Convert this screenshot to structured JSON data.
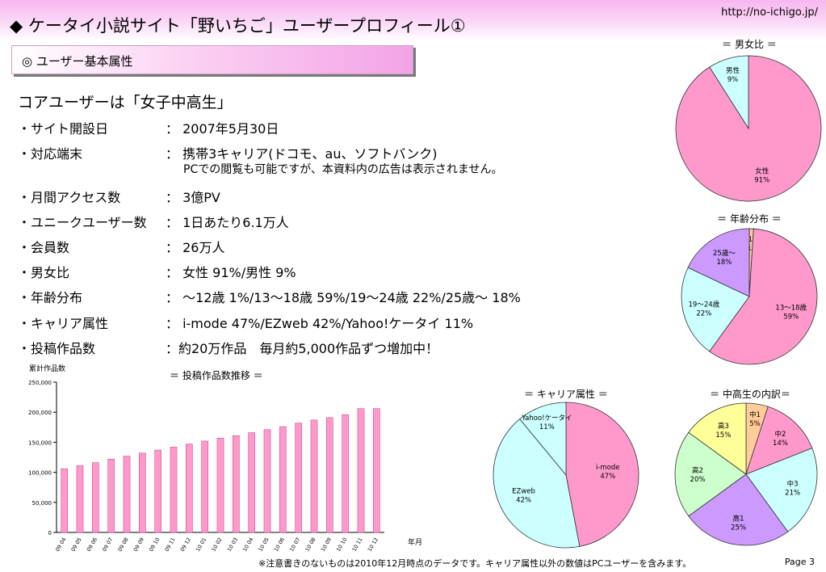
{
  "header": {
    "title": "◆ ケータイ小説サイト「野いちご」ユーザープロフィール①",
    "url": "http://no-ichigo.jp/"
  },
  "section": {
    "label": "◎ ユーザー基本属性"
  },
  "headline": "コアユーザーは「女子中高生」",
  "attributes": [
    {
      "label": "・サイト開設日",
      "value": "： 2007年5月30日"
    },
    {
      "label": "・対応端末",
      "value": "： 携帯3キャリア(ドコモ、au、ソフトバンク)",
      "note": "PCでの閲覧も可能ですが、本資料内の広告は表示されません。"
    },
    {
      "label": "・月間アクセス数",
      "value": "： 3億PV"
    },
    {
      "label": "・ユニークユーザー数",
      "value": "： 1日あたり6.1万人"
    },
    {
      "label": "・会員数",
      "value": "： 26万人"
    },
    {
      "label": "・男女比",
      "value": "： 女性 91%/男性 9%"
    },
    {
      "label": "・年齢分布",
      "value": "： ～12歳 1%/13～18歳 59%/19～24歳 22%/25歳～ 18%"
    },
    {
      "label": "・キャリア属性",
      "value": "： i-mode 47%/EZweb 42%/Yahoo!ケータイ 11%"
    },
    {
      "label": "・投稿作品数",
      "value": "：約20万作品　毎月約5,000作品ずつ増加中！"
    }
  ],
  "footnote": "※注意書きのないものは2010年12月時点のデータです。キャリア属性以外の数値はPCユーザーを含みます。",
  "page": "Page 3",
  "colors": {
    "pink": "#ff99cc",
    "cyan": "#ccffff",
    "lavender": "#cc99ff",
    "yellow": "#ffff99",
    "peach": "#ffcc99",
    "green": "#ccffcc"
  },
  "chart_data": [
    {
      "type": "bar",
      "title": "＝ 投稿作品数推移 ＝",
      "ylabel": "累計作品数",
      "xlabel": "年月",
      "ylim": [
        0,
        250000
      ],
      "yticks": [
        "0",
        "50,000",
        "100,000",
        "150,000",
        "200,000",
        "250,000"
      ],
      "categories": [
        "09 04",
        "09 05",
        "09 06",
        "09 07",
        "09 08",
        "09 09",
        "09 10",
        "09 11",
        "09 12",
        "10 01",
        "10 02",
        "10 03",
        "10 04",
        "10 05",
        "10 06",
        "10 07",
        "10 08",
        "10 09",
        "10 10",
        "10 11",
        "10 12"
      ],
      "values": [
        106000,
        111000,
        116000,
        122000,
        127000,
        132000,
        137000,
        142000,
        147000,
        152000,
        157000,
        161000,
        166000,
        171000,
        176000,
        182000,
        187000,
        191000,
        196000,
        206000,
        206000
      ]
    },
    {
      "type": "pie",
      "title": "＝ 男女比 ＝",
      "slices": [
        {
          "label": "女性",
          "value": 91,
          "text": "91%",
          "color": "#ff99cc"
        },
        {
          "label": "男性",
          "value": 9,
          "text": "9%",
          "color": "#ccffff"
        }
      ]
    },
    {
      "type": "pie",
      "title": "＝ 年齢分布 ＝",
      "slices": [
        {
          "label": "～12歳",
          "value": 1,
          "text": "1%",
          "color": "#ffcc99"
        },
        {
          "label": "13～18歳",
          "value": 59,
          "text": "59%",
          "color": "#ff99cc"
        },
        {
          "label": "19～24歳",
          "value": 22,
          "text": "22%",
          "color": "#ccffff"
        },
        {
          "label": "25歳～",
          "value": 18,
          "text": "18%",
          "color": "#cc99ff"
        }
      ]
    },
    {
      "type": "pie",
      "title": "＝ キャリア属性 ＝",
      "slices": [
        {
          "label": "i-mode",
          "value": 47,
          "text": "47%",
          "color": "#ff99cc"
        },
        {
          "label": "EZweb",
          "value": 42,
          "text": "42%",
          "color": "#ccffff"
        },
        {
          "label": "Yahoo!ケータイ",
          "value": 11,
          "text": "11%",
          "color": "#ccffff"
        }
      ]
    },
    {
      "type": "pie",
      "title": "＝ 中高生の内訳＝",
      "slices": [
        {
          "label": "中1",
          "value": 5,
          "text": "5%",
          "color": "#ffcc99"
        },
        {
          "label": "中2",
          "value": 14,
          "text": "14%",
          "color": "#ff99cc"
        },
        {
          "label": "中3",
          "value": 21,
          "text": "21%",
          "color": "#ccffff"
        },
        {
          "label": "高1",
          "value": 25,
          "text": "25%",
          "color": "#cc99ff"
        },
        {
          "label": "高2",
          "value": 20,
          "text": "20%",
          "color": "#ccffcc"
        },
        {
          "label": "高3",
          "value": 15,
          "text": "15%",
          "color": "#ffff99"
        }
      ]
    }
  ]
}
